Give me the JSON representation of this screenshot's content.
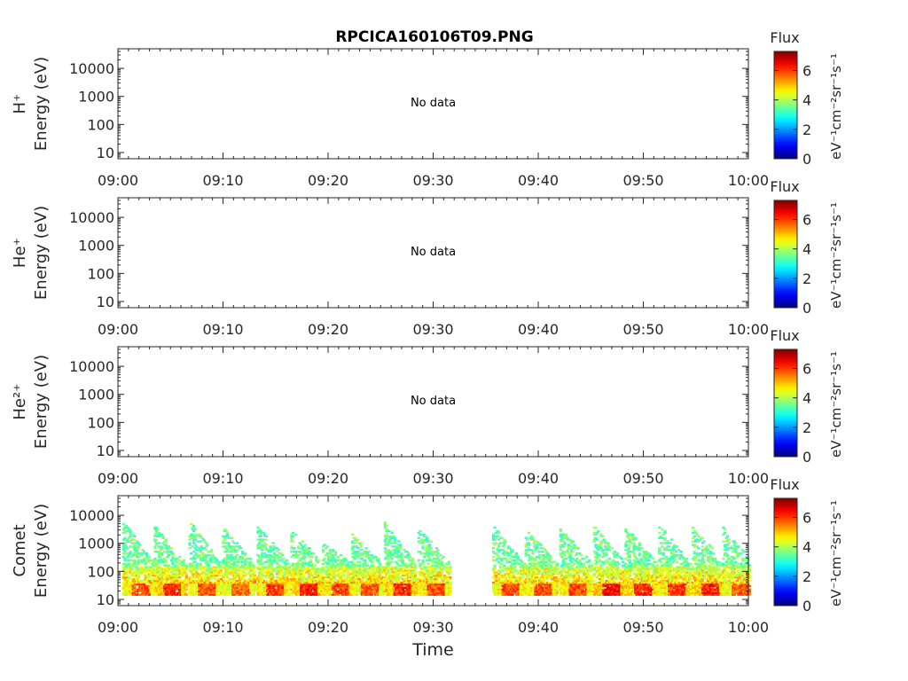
{
  "figure": {
    "title": "RPCICA160106T09.PNG",
    "xlabel": "Time"
  },
  "colorbar": {
    "label": "Flux",
    "unit": "eV⁻¹cm⁻²sr⁻¹s⁻¹",
    "ticks": [
      "0",
      "2",
      "4",
      "6"
    ],
    "range": [
      0,
      7.3
    ],
    "colormap": "jet"
  },
  "chart_data": [
    {
      "type": "heatmap",
      "name": "H+",
      "ylabel_species": "H⁺",
      "ylabel": "Energy (eV)",
      "yscale": "log",
      "ylim": [
        6,
        50000
      ],
      "yticks": [
        "10",
        "100",
        "1000",
        "10000"
      ],
      "xlim": [
        "09:00",
        "10:00"
      ],
      "xticks": [
        "09:00",
        "09:10",
        "09:20",
        "09:30",
        "09:40",
        "09:50",
        "10:00"
      ],
      "annotation": "No data",
      "bursts": []
    },
    {
      "type": "heatmap",
      "name": "He+",
      "ylabel_species": "He⁺",
      "ylabel": "Energy (eV)",
      "yscale": "log",
      "ylim": [
        6,
        50000
      ],
      "yticks": [
        "10",
        "100",
        "1000",
        "10000"
      ],
      "xlim": [
        "09:00",
        "10:00"
      ],
      "xticks": [
        "09:00",
        "09:10",
        "09:20",
        "09:30",
        "09:40",
        "09:50",
        "10:00"
      ],
      "annotation": "No data",
      "bursts": []
    },
    {
      "type": "heatmap",
      "name": "He2+",
      "ylabel_species": "He²⁺",
      "ylabel": "Energy (eV)",
      "yscale": "log",
      "ylim": [
        6,
        50000
      ],
      "yticks": [
        "10",
        "100",
        "1000",
        "10000"
      ],
      "xlim": [
        "09:00",
        "10:00"
      ],
      "xticks": [
        "09:00",
        "09:10",
        "09:20",
        "09:30",
        "09:40",
        "09:50",
        "10:00"
      ],
      "annotation": "No data",
      "bursts": []
    },
    {
      "type": "heatmap",
      "name": "Comet",
      "ylabel_species": "Comet",
      "ylabel": "Energy (eV)",
      "yscale": "log",
      "ylim": [
        6,
        50000
      ],
      "yticks": [
        "10",
        "100",
        "1000",
        "10000"
      ],
      "xlim": [
        "09:00",
        "10:00"
      ],
      "xticks": [
        "09:00",
        "09:10",
        "09:20",
        "09:30",
        "09:40",
        "09:50",
        "10:00"
      ],
      "annotation": "",
      "data_gap_minutes": [
        31.5,
        35.3
      ],
      "bursts": [
        {
          "t": 0.6,
          "emax": 5000,
          "peak_e": 25,
          "peak_flux": 6.3
        },
        {
          "t": 3.6,
          "emax": 3500,
          "peak_e": 25,
          "peak_flux": 6.6
        },
        {
          "t": 6.9,
          "emax": 5500,
          "peak_e": 25,
          "peak_flux": 6.3
        },
        {
          "t": 10.1,
          "emax": 3000,
          "peak_e": 25,
          "peak_flux": 6.1
        },
        {
          "t": 13.4,
          "emax": 3800,
          "peak_e": 25,
          "peak_flux": 6.4
        },
        {
          "t": 16.6,
          "emax": 2800,
          "peak_e": 25,
          "peak_flux": 6.7
        },
        {
          "t": 19.6,
          "emax": 900,
          "peak_e": 25,
          "peak_flux": 6.4
        },
        {
          "t": 22.4,
          "emax": 1800,
          "peak_e": 25,
          "peak_flux": 6.2
        },
        {
          "t": 25.5,
          "emax": 4500,
          "peak_e": 25,
          "peak_flux": 6.6
        },
        {
          "t": 28.7,
          "emax": 3200,
          "peak_e": 25,
          "peak_flux": 6.3
        },
        {
          "t": 35.8,
          "emax": 3500,
          "peak_e": 25,
          "peak_flux": 6.4
        },
        {
          "t": 38.9,
          "emax": 3000,
          "peak_e": 25,
          "peak_flux": 6.3
        },
        {
          "t": 42.2,
          "emax": 3200,
          "peak_e": 25,
          "peak_flux": 6.4
        },
        {
          "t": 45.4,
          "emax": 3500,
          "peak_e": 25,
          "peak_flux": 6.9
        },
        {
          "t": 48.4,
          "emax": 3500,
          "peak_e": 25,
          "peak_flux": 6.6
        },
        {
          "t": 51.6,
          "emax": 4000,
          "peak_e": 25,
          "peak_flux": 6.4
        },
        {
          "t": 54.8,
          "emax": 3800,
          "peak_e": 25,
          "peak_flux": 6.7
        },
        {
          "t": 57.7,
          "emax": 3200,
          "peak_e": 25,
          "peak_flux": 6.2
        }
      ]
    }
  ]
}
